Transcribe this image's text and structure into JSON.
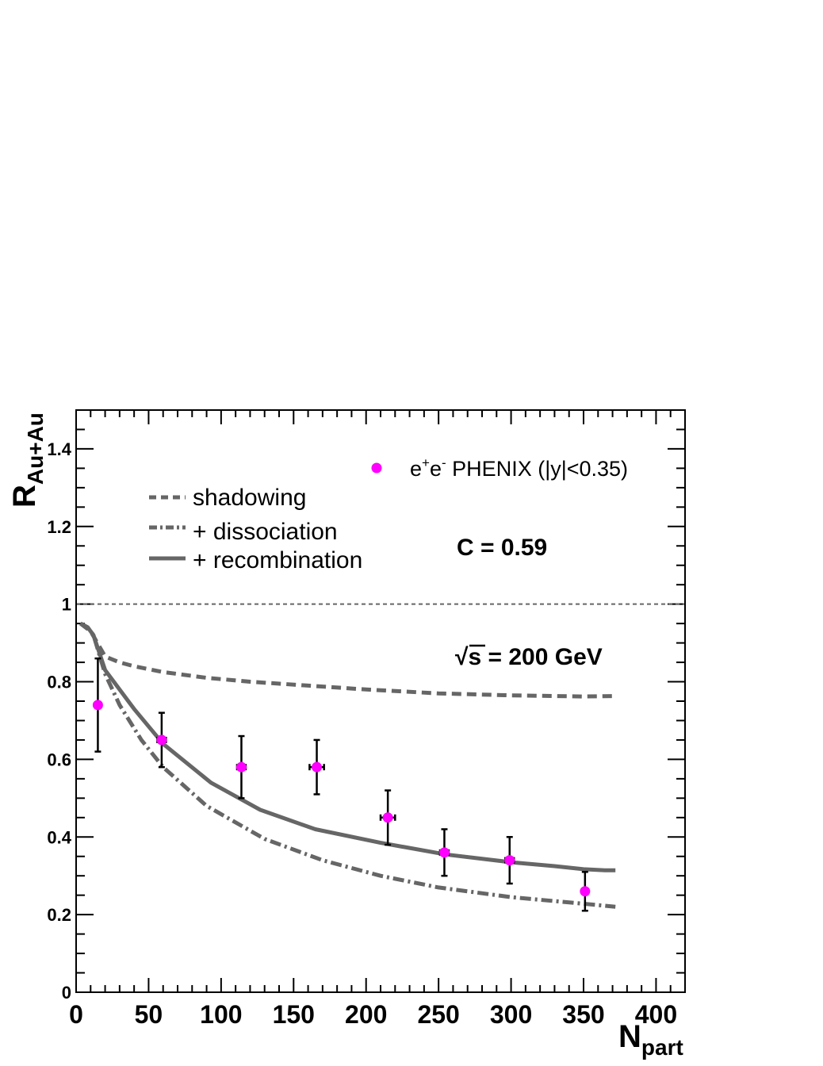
{
  "chart_data": {
    "type": "line",
    "title": "",
    "xlabel": "N",
    "xlabel_sub": "part",
    "ylabel": "R",
    "ylabel_sub": "Au+Au",
    "xlim": [
      0,
      420
    ],
    "ylim": [
      0,
      1.5
    ],
    "x_ticks": [
      0,
      50,
      100,
      150,
      200,
      250,
      300,
      350,
      400
    ],
    "y_ticks": [
      0,
      0.2,
      0.4,
      0.6,
      0.8,
      1,
      1.2,
      1.4
    ],
    "reference_line": 1,
    "annotations": {
      "c_value": "C = 0.59",
      "energy_sqrt": "√",
      "energy_rest": "s = 200 GeV"
    },
    "legend": {
      "data_label_e1": "e",
      "data_label_sup1": "+",
      "data_label_e2": "e",
      "data_label_sup2": "-",
      "data_label_rest": " PHENIX (|y|<0.35)",
      "shadowing": "shadowing",
      "dissociation": "+ dissociation",
      "recombination": "+ recombination"
    },
    "series": [
      {
        "name": "shadowing",
        "style": "dashed",
        "color": "#666666",
        "x": [
          3,
          10,
          20,
          30,
          40,
          60,
          90,
          120,
          160,
          200,
          250,
          300,
          350,
          372
        ],
        "y": [
          0.95,
          0.93,
          0.865,
          0.85,
          0.84,
          0.825,
          0.81,
          0.8,
          0.79,
          0.78,
          0.77,
          0.765,
          0.762,
          0.763
        ]
      },
      {
        "name": "+ dissociation",
        "style": "dashdot",
        "color": "#666666",
        "x": [
          3,
          8,
          12,
          20,
          30,
          45,
          60,
          90,
          130,
          170,
          210,
          250,
          300,
          350,
          372
        ],
        "y": [
          0.95,
          0.94,
          0.92,
          0.82,
          0.74,
          0.65,
          0.58,
          0.48,
          0.395,
          0.34,
          0.3,
          0.27,
          0.245,
          0.228,
          0.22
        ]
      },
      {
        "name": "+ recombination",
        "style": "solid",
        "color": "#666666",
        "x": [
          3,
          8,
          12,
          20,
          40,
          60,
          93,
          127,
          165,
          210,
          255,
          300,
          330,
          350,
          365,
          372
        ],
        "y": [
          0.95,
          0.94,
          0.92,
          0.83,
          0.73,
          0.64,
          0.54,
          0.47,
          0.42,
          0.385,
          0.355,
          0.335,
          0.325,
          0.317,
          0.314,
          0.314
        ]
      }
    ],
    "points": {
      "name": "e+e- PHENIX (|y|<0.35)",
      "color": "#ff00ff",
      "x": [
        15,
        59,
        114,
        166,
        215,
        254,
        299,
        351
      ],
      "y": [
        0.74,
        0.65,
        0.58,
        0.58,
        0.45,
        0.36,
        0.34,
        0.26
      ],
      "yerr_lo": [
        0.12,
        0.07,
        0.08,
        0.07,
        0.07,
        0.06,
        0.06,
        0.05
      ],
      "yerr_hi": [
        0.12,
        0.07,
        0.08,
        0.07,
        0.07,
        0.06,
        0.06,
        0.05
      ],
      "xerr": [
        0,
        3,
        3,
        5,
        5,
        3,
        3,
        0
      ]
    }
  }
}
